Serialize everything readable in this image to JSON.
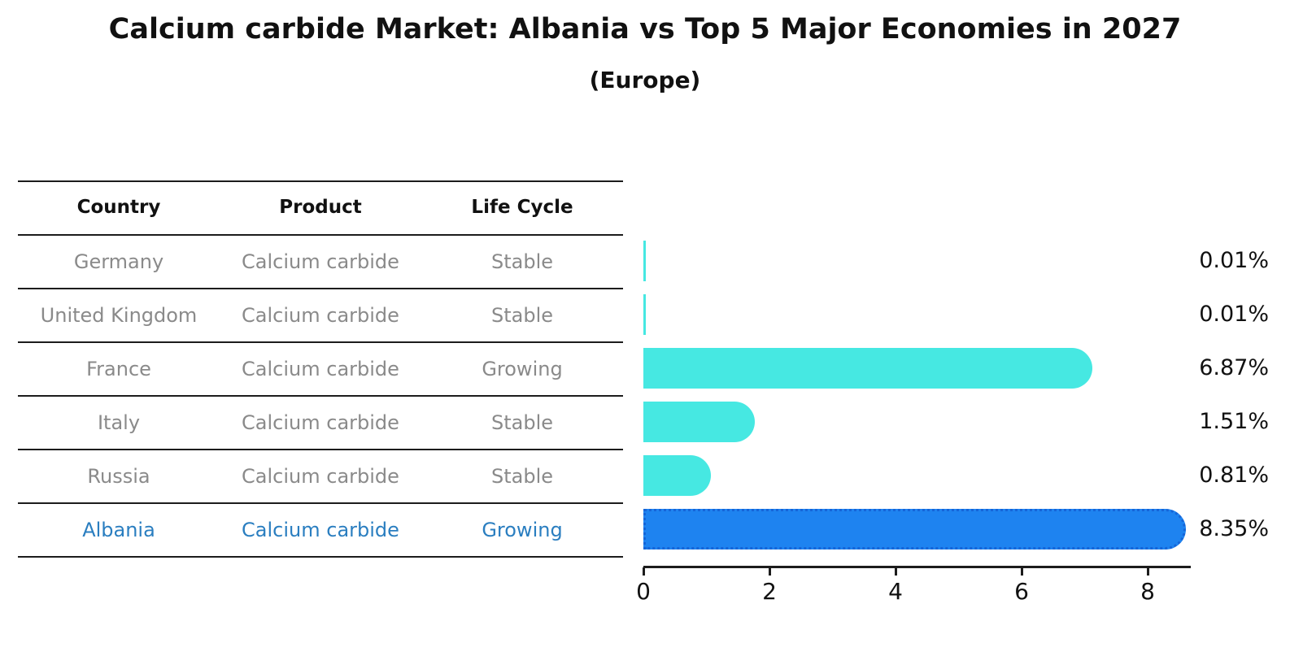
{
  "title": "Calcium carbide Market: Albania vs Top 5 Major Economies in 2027",
  "subtitle": "(Europe)",
  "table": {
    "headers": [
      "Country",
      "Product",
      "Life Cycle"
    ],
    "rows": [
      {
        "country": "Germany",
        "product": "Calcium carbide",
        "life_cycle": "Stable",
        "value": 0.01,
        "label": "0.01%",
        "highlight": false
      },
      {
        "country": "United Kingdom",
        "product": "Calcium carbide",
        "life_cycle": "Stable",
        "value": 0.01,
        "label": "0.01%",
        "highlight": false
      },
      {
        "country": "France",
        "product": "Calcium carbide",
        "life_cycle": "Growing",
        "value": 6.87,
        "label": "6.87%",
        "highlight": false
      },
      {
        "country": "Italy",
        "product": "Calcium carbide",
        "life_cycle": "Stable",
        "value": 1.51,
        "label": "1.51%",
        "highlight": false
      },
      {
        "country": "Russia",
        "product": "Calcium carbide",
        "life_cycle": "Stable",
        "value": 0.81,
        "label": "0.81%",
        "highlight": false
      },
      {
        "country": "Albania",
        "product": "Calcium carbide",
        "life_cycle": "Growing",
        "value": 8.35,
        "label": "8.35%",
        "highlight": true
      }
    ]
  },
  "axis": {
    "ticks": [
      "0",
      "2",
      "4",
      "6",
      "8"
    ]
  },
  "colors": {
    "bar": "#46e8e2",
    "highlight_bar": "#1e83f0",
    "highlight_border": "#1565d8",
    "highlight_text": "#2a7ec0",
    "row_text": "#8a8a8a",
    "line": "#1c1c1c"
  },
  "chart_data": {
    "type": "bar",
    "orientation": "horizontal",
    "title": "Calcium carbide Market: Albania vs Top 5 Major Economies in 2027",
    "subtitle": "(Europe)",
    "categories": [
      "Germany",
      "United Kingdom",
      "France",
      "Italy",
      "Russia",
      "Albania"
    ],
    "values": [
      0.01,
      0.01,
      6.87,
      1.51,
      0.81,
      8.35
    ],
    "value_labels": [
      "0.01%",
      "0.01%",
      "6.87%",
      "1.51%",
      "0.81%",
      "8.35%"
    ],
    "products": [
      "Calcium carbide",
      "Calcium carbide",
      "Calcium carbide",
      "Calcium carbide",
      "Calcium carbide",
      "Calcium carbide"
    ],
    "life_cycles": [
      "Stable",
      "Stable",
      "Growing",
      "Stable",
      "Stable",
      "Growing"
    ],
    "xlabel": "",
    "ylabel": "",
    "xlim": [
      0,
      8.7
    ],
    "xticks": [
      0,
      2,
      4,
      6,
      8
    ],
    "grid": false,
    "legend": false,
    "highlight_category": "Albania"
  }
}
